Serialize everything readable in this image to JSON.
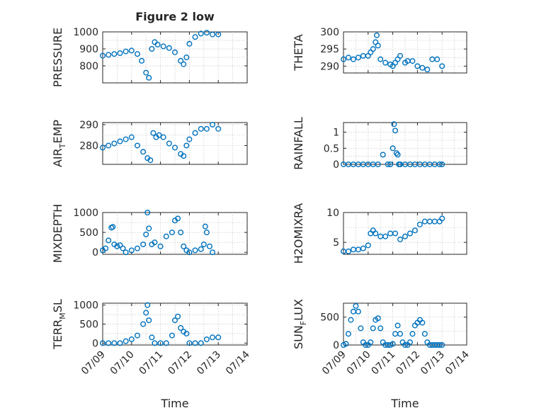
{
  "figure": {
    "title": "Figure 2 low"
  },
  "chart_data": [
    {
      "type": "scatter",
      "title": "Figure 2 low",
      "ylabel": "PRESSURE",
      "ylabel_sub": "",
      "ylabel_tail": "",
      "xlabel": "",
      "xlim": [
        0,
        5
      ],
      "ylim": [
        700,
        1000
      ],
      "yticks": [
        800,
        900,
        1000
      ],
      "xticks": [
        0,
        1,
        2,
        3,
        4,
        5
      ],
      "grid": true,
      "marker": "circle",
      "color": "#0072BD",
      "x": [
        0.0,
        0.2,
        0.4,
        0.6,
        0.8,
        1.0,
        1.2,
        1.35,
        1.5,
        1.6,
        1.7,
        1.8,
        1.9,
        2.1,
        2.3,
        2.5,
        2.7,
        2.8,
        2.9,
        3.0,
        3.2,
        3.4,
        3.6,
        3.8,
        4.0
      ],
      "y": [
        860,
        865,
        870,
        875,
        885,
        890,
        870,
        830,
        760,
        730,
        900,
        940,
        925,
        915,
        905,
        880,
        830,
        810,
        850,
        930,
        970,
        990,
        995,
        985,
        985
      ]
    },
    {
      "type": "scatter",
      "title": "",
      "ylabel": "THETA",
      "ylabel_sub": "",
      "ylabel_tail": "",
      "xlabel": "",
      "xlim": [
        0,
        5
      ],
      "ylim": [
        288,
        300
      ],
      "yticks": [
        290,
        295,
        300
      ],
      "xticks": [
        0,
        1,
        2,
        3,
        4,
        5
      ],
      "grid": true,
      "marker": "circle",
      "color": "#0072BD",
      "x": [
        0.0,
        0.2,
        0.4,
        0.6,
        0.8,
        1.0,
        1.1,
        1.2,
        1.3,
        1.35,
        1.4,
        1.5,
        1.7,
        1.9,
        2.0,
        2.1,
        2.2,
        2.3,
        2.5,
        2.6,
        2.8,
        3.0,
        3.2,
        3.4,
        3.6,
        3.8,
        4.0
      ],
      "y": [
        292,
        292.5,
        292,
        292.5,
        293,
        293,
        294,
        295,
        297,
        299,
        296,
        292,
        291,
        290.5,
        290,
        291,
        292,
        293,
        291,
        291.5,
        291.5,
        290,
        289.5,
        289,
        292,
        292,
        290
      ]
    },
    {
      "type": "scatter",
      "title": "",
      "ylabel": "AIR",
      "ylabel_sub": "T",
      "ylabel_tail": "EMP",
      "xlabel": "",
      "xlim": [
        0,
        5
      ],
      "ylim": [
        271,
        291
      ],
      "yticks": [
        280,
        290
      ],
      "xticks": [
        0,
        1,
        2,
        3,
        4,
        5
      ],
      "grid": true,
      "marker": "circle",
      "color": "#0072BD",
      "x": [
        0.0,
        0.2,
        0.4,
        0.6,
        0.8,
        1.0,
        1.2,
        1.4,
        1.55,
        1.65,
        1.75,
        1.85,
        1.95,
        2.1,
        2.3,
        2.5,
        2.7,
        2.8,
        2.9,
        3.0,
        3.2,
        3.4,
        3.6,
        3.8,
        4.0
      ],
      "y": [
        279,
        280,
        281,
        282,
        283,
        284,
        280,
        277,
        274,
        273,
        286,
        284,
        285,
        284,
        281,
        279,
        276,
        275,
        280,
        283,
        286,
        288,
        288,
        290,
        288
      ]
    },
    {
      "type": "scatter",
      "title": "",
      "ylabel": "RAINFALL",
      "ylabel_sub": "",
      "ylabel_tail": "",
      "xlabel": "",
      "xlim": [
        0,
        5
      ],
      "ylim": [
        0,
        1.3
      ],
      "yticks": [
        0,
        0.5,
        1
      ],
      "xticks": [
        0,
        1,
        2,
        3,
        4,
        5
      ],
      "grid": true,
      "marker": "circle",
      "color": "#0072BD",
      "x": [
        0.0,
        0.2,
        0.4,
        0.6,
        0.8,
        1.0,
        1.2,
        1.4,
        1.6,
        1.8,
        1.9,
        2.0,
        2.05,
        2.1,
        2.15,
        2.2,
        2.25,
        2.3,
        2.5,
        2.7,
        2.9,
        3.1,
        3.3,
        3.5,
        3.7,
        3.9,
        4.0
      ],
      "y": [
        0,
        0,
        0,
        0,
        0,
        0,
        0,
        0,
        0.3,
        0,
        0,
        0.5,
        1.25,
        1.05,
        0.35,
        0.3,
        0,
        0,
        0,
        0,
        0,
        0,
        0,
        0,
        0,
        0,
        0
      ]
    },
    {
      "type": "scatter",
      "title": "",
      "ylabel": "MIXDEPTH",
      "ylabel_sub": "",
      "ylabel_tail": "",
      "xlabel": "",
      "xlim": [
        0,
        5
      ],
      "ylim": [
        -50,
        1000
      ],
      "yticks": [
        0,
        500,
        1000
      ],
      "xticks": [
        0,
        1,
        2,
        3,
        4,
        5
      ],
      "grid": true,
      "marker": "circle",
      "color": "#0072BD",
      "x": [
        0.0,
        0.1,
        0.2,
        0.3,
        0.35,
        0.4,
        0.5,
        0.6,
        0.7,
        0.8,
        1.0,
        1.2,
        1.4,
        1.5,
        1.55,
        1.6,
        1.7,
        1.8,
        2.0,
        2.2,
        2.4,
        2.5,
        2.6,
        2.7,
        2.8,
        2.9,
        3.0,
        3.2,
        3.4,
        3.5,
        3.55,
        3.6,
        3.7,
        3.8
      ],
      "y": [
        50,
        100,
        300,
        620,
        640,
        200,
        150,
        180,
        100,
        0,
        50,
        100,
        200,
        450,
        1000,
        600,
        200,
        250,
        150,
        400,
        500,
        800,
        850,
        500,
        150,
        50,
        0,
        50,
        80,
        200,
        650,
        500,
        150,
        0
      ]
    },
    {
      "type": "scatter",
      "title": "",
      "ylabel": "H2OMIXRA",
      "ylabel_sub": "",
      "ylabel_tail": "",
      "xlabel": "",
      "xlim": [
        0,
        5
      ],
      "ylim": [
        3,
        10
      ],
      "yticks": [
        5,
        10
      ],
      "xticks": [
        0,
        1,
        2,
        3,
        4,
        5
      ],
      "grid": true,
      "marker": "circle",
      "color": "#0072BD",
      "x": [
        0.0,
        0.2,
        0.4,
        0.6,
        0.8,
        1.0,
        1.1,
        1.2,
        1.3,
        1.5,
        1.7,
        1.9,
        2.1,
        2.3,
        2.5,
        2.7,
        2.9,
        3.1,
        3.3,
        3.5,
        3.7,
        3.9,
        4.0
      ],
      "y": [
        3.5,
        3.5,
        3.8,
        3.8,
        4.0,
        4.5,
        6.5,
        7.0,
        6.5,
        6.0,
        6.0,
        6.5,
        6.5,
        5.5,
        6.0,
        6.5,
        7.0,
        8.0,
        8.5,
        8.5,
        8.5,
        8.5,
        9.0
      ]
    },
    {
      "type": "scatter",
      "title": "",
      "ylabel": "TERR",
      "ylabel_sub": "M",
      "ylabel_tail": "SL",
      "xlabel": "Time",
      "xlim": [
        0,
        5
      ],
      "ylim": [
        -50,
        1050
      ],
      "yticks": [
        0,
        500,
        1000
      ],
      "xticks": [
        0,
        1,
        2,
        3,
        4,
        5
      ],
      "xticklabels": [
        "07/09",
        "07/10",
        "07/11",
        "07/12",
        "07/13",
        "07/14"
      ],
      "grid": true,
      "marker": "circle",
      "color": "#0072BD",
      "x": [
        0.0,
        0.2,
        0.4,
        0.6,
        0.8,
        1.0,
        1.2,
        1.4,
        1.5,
        1.55,
        1.6,
        1.7,
        1.8,
        2.0,
        2.2,
        2.4,
        2.5,
        2.6,
        2.7,
        2.8,
        2.9,
        3.0,
        3.2,
        3.4,
        3.6,
        3.8,
        4.0
      ],
      "y": [
        0,
        0,
        0,
        0,
        50,
        100,
        200,
        500,
        800,
        1000,
        600,
        150,
        0,
        0,
        0,
        200,
        600,
        700,
        400,
        300,
        250,
        0,
        0,
        0,
        100,
        150,
        150
      ]
    },
    {
      "type": "scatter",
      "title": "",
      "ylabel": "SUN",
      "ylabel_sub": "F",
      "ylabel_tail": "LUX",
      "xlabel": "Time",
      "xlim": [
        0,
        5
      ],
      "ylim": [
        0,
        750
      ],
      "yticks": [
        0,
        500
      ],
      "xticks": [
        0,
        1,
        2,
        3,
        4,
        5
      ],
      "xticklabels": [
        "07/09",
        "07/10",
        "07/11",
        "07/12",
        "07/13",
        "07/14"
      ],
      "grid": true,
      "marker": "circle",
      "color": "#0072BD",
      "x": [
        0.0,
        0.1,
        0.2,
        0.3,
        0.4,
        0.5,
        0.6,
        0.7,
        0.8,
        0.9,
        1.0,
        1.1,
        1.2,
        1.3,
        1.4,
        1.5,
        1.6,
        1.7,
        1.8,
        1.9,
        2.0,
        2.1,
        2.2,
        2.3,
        2.4,
        2.5,
        2.6,
        2.7,
        2.8,
        2.9,
        3.0,
        3.1,
        3.2,
        3.3,
        3.4,
        3.5,
        3.6,
        3.7,
        3.8,
        3.9,
        4.0
      ],
      "y": [
        0,
        20,
        200,
        450,
        600,
        700,
        600,
        300,
        50,
        0,
        0,
        50,
        300,
        450,
        480,
        300,
        50,
        0,
        0,
        0,
        20,
        200,
        350,
        200,
        50,
        0,
        0,
        50,
        200,
        350,
        400,
        450,
        400,
        200,
        50,
        0,
        0,
        0,
        0,
        0,
        0
      ]
    }
  ]
}
